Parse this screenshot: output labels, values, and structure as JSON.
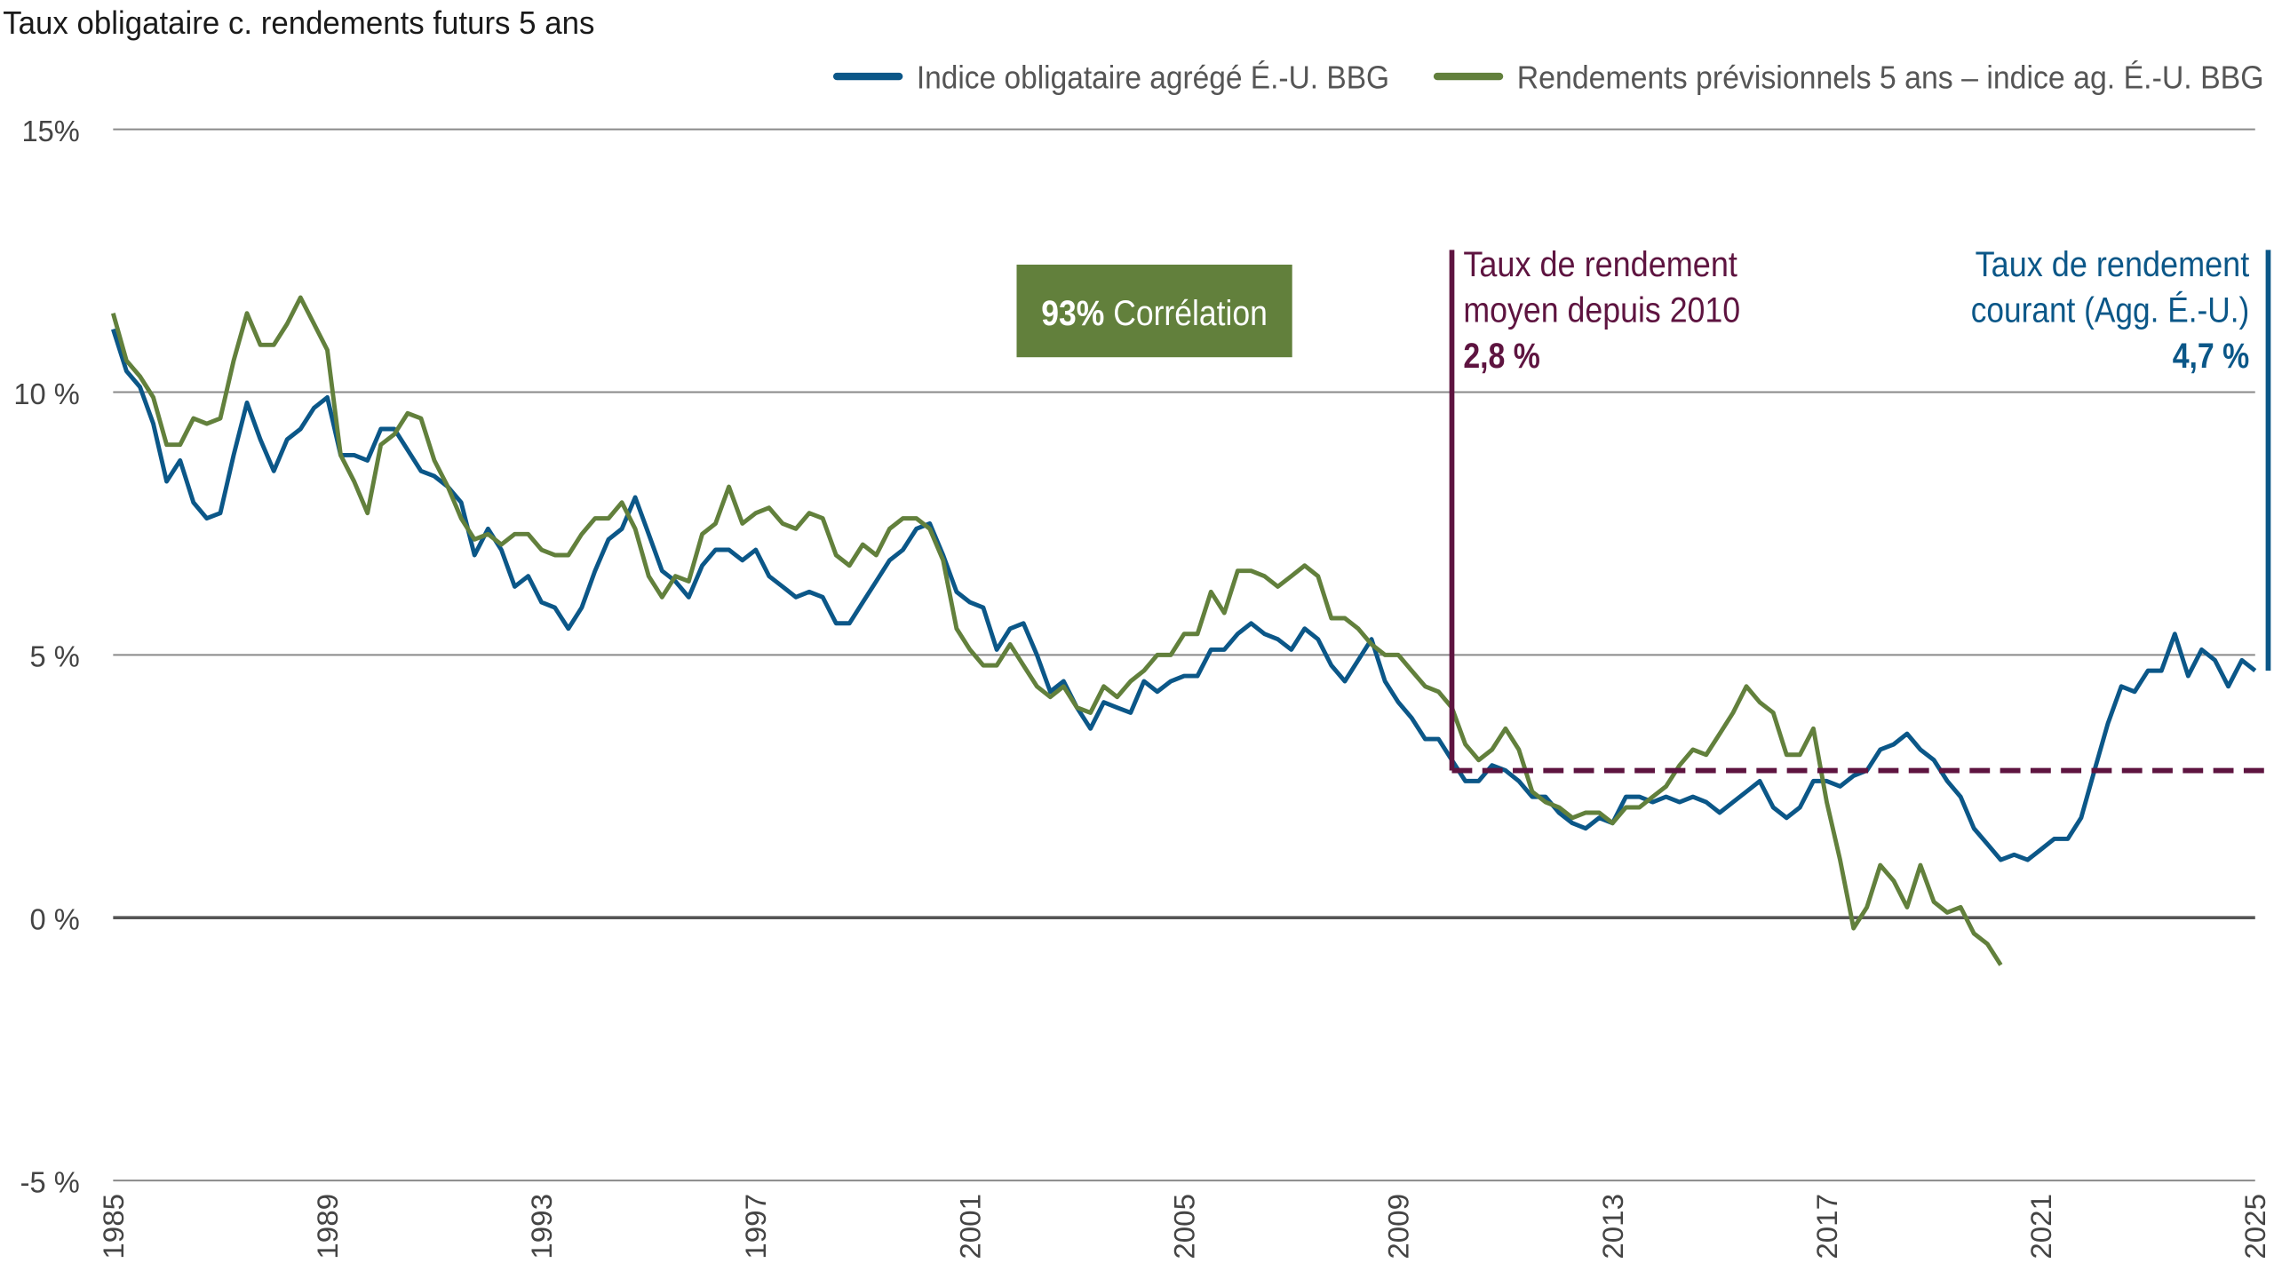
{
  "chart_data": {
    "type": "line",
    "title": "Taux obligataire c. rendements futurs 5 ans",
    "xlabel": "",
    "ylabel": "",
    "xlim": [
      1985,
      2025
    ],
    "ylim": [
      -5,
      15
    ],
    "grid": true,
    "legend_placement": "top-right",
    "y_ticks": [
      15,
      10,
      5,
      0,
      -5
    ],
    "y_tick_labels": [
      "15%",
      "10 %",
      "5 %",
      "0 %",
      "-5 %"
    ],
    "x_ticks": [
      1985,
      1989,
      1993,
      1997,
      2001,
      2005,
      2009,
      2013,
      2017,
      2021,
      2025
    ],
    "x_tick_labels": [
      "1985",
      "1989",
      "1993",
      "1997",
      "2001",
      "2005",
      "2009",
      "2013",
      "2017",
      "2021",
      "2025"
    ],
    "x": [
      1985,
      1985.25,
      1985.5,
      1985.75,
      1986,
      1986.25,
      1986.5,
      1986.75,
      1987,
      1987.25,
      1987.5,
      1987.75,
      1988,
      1988.25,
      1988.5,
      1988.75,
      1989,
      1989.25,
      1989.5,
      1989.75,
      1990,
      1990.25,
      1990.5,
      1990.75,
      1991,
      1991.25,
      1991.5,
      1991.75,
      1992,
      1992.25,
      1992.5,
      1992.75,
      1993,
      1993.25,
      1993.5,
      1993.75,
      1994,
      1994.25,
      1994.5,
      1994.75,
      1995,
      1995.25,
      1995.5,
      1995.75,
      1996,
      1996.25,
      1996.5,
      1996.75,
      1997,
      1997.25,
      1997.5,
      1997.75,
      1998,
      1998.25,
      1998.5,
      1998.75,
      1999,
      1999.25,
      1999.5,
      1999.75,
      2000,
      2000.25,
      2000.5,
      2000.75,
      2001,
      2001.25,
      2001.5,
      2001.75,
      2002,
      2002.25,
      2002.5,
      2002.75,
      2003,
      2003.25,
      2003.5,
      2003.75,
      2004,
      2004.25,
      2004.5,
      2004.75,
      2005,
      2005.25,
      2005.5,
      2005.75,
      2006,
      2006.25,
      2006.5,
      2006.75,
      2007,
      2007.25,
      2007.5,
      2007.75,
      2008,
      2008.25,
      2008.5,
      2008.75,
      2009,
      2009.25,
      2009.5,
      2009.75,
      2010,
      2010.25,
      2010.5,
      2010.75,
      2011,
      2011.25,
      2011.5,
      2011.75,
      2012,
      2012.25,
      2012.5,
      2012.75,
      2013,
      2013.25,
      2013.5,
      2013.75,
      2014,
      2014.25,
      2014.5,
      2014.75,
      2015,
      2015.25,
      2015.5,
      2015.75,
      2016,
      2016.25,
      2016.5,
      2016.75,
      2017,
      2017.25,
      2017.5,
      2017.75,
      2018,
      2018.25,
      2018.5,
      2018.75,
      2019,
      2019.25,
      2019.5,
      2019.75,
      2020,
      2020.25,
      2020.5,
      2020.75,
      2021,
      2021.25,
      2021.5,
      2021.75,
      2022,
      2022.25,
      2022.5,
      2022.75,
      2023,
      2023.25,
      2023.5,
      2023.75,
      2024,
      2024.25,
      2024.5,
      2024.75,
      2025
    ],
    "series": [
      {
        "name": "Indice obligataire agrégé É.-U. BBG",
        "color": "#0b5788",
        "values": [
          11.2,
          10.4,
          10.1,
          9.4,
          8.3,
          8.7,
          7.9,
          7.6,
          7.7,
          8.8,
          9.8,
          9.1,
          8.5,
          9.1,
          9.3,
          9.7,
          9.9,
          8.8,
          8.8,
          8.7,
          9.3,
          9.3,
          8.9,
          8.5,
          8.4,
          8.2,
          7.9,
          6.9,
          7.4,
          7.0,
          6.3,
          6.5,
          6.0,
          5.9,
          5.5,
          5.9,
          6.6,
          7.2,
          7.4,
          8.0,
          7.3,
          6.6,
          6.4,
          6.1,
          6.7,
          7.0,
          7.0,
          6.8,
          7.0,
          6.5,
          6.3,
          6.1,
          6.2,
          6.1,
          5.6,
          5.6,
          6.0,
          6.4,
          6.8,
          7.0,
          7.4,
          7.5,
          6.9,
          6.2,
          6.0,
          5.9,
          5.1,
          5.5,
          5.6,
          5.0,
          4.3,
          4.5,
          4.0,
          3.6,
          4.1,
          4.0,
          3.9,
          4.5,
          4.3,
          4.5,
          4.6,
          4.6,
          5.1,
          5.1,
          5.4,
          5.6,
          5.4,
          5.3,
          5.1,
          5.5,
          5.3,
          4.8,
          4.5,
          4.9,
          5.3,
          4.5,
          4.1,
          3.8,
          3.4,
          3.4,
          3.0,
          2.6,
          2.6,
          2.9,
          2.8,
          2.6,
          2.3,
          2.3,
          2.0,
          1.8,
          1.7,
          1.9,
          1.8,
          2.3,
          2.3,
          2.2,
          2.3,
          2.2,
          2.3,
          2.2,
          2.0,
          2.2,
          2.4,
          2.6,
          2.1,
          1.9,
          2.1,
          2.6,
          2.6,
          2.5,
          2.7,
          2.8,
          3.2,
          3.3,
          3.5,
          3.2,
          3.0,
          2.6,
          2.3,
          1.7,
          1.4,
          1.1,
          1.2,
          1.1,
          1.3,
          1.5,
          1.5,
          1.9,
          2.8,
          3.7,
          4.4,
          4.3,
          4.7,
          4.7,
          5.4,
          4.6,
          5.1,
          4.9,
          4.4,
          4.9,
          4.7
        ]
      },
      {
        "name": "Rendements prévisionnels 5 ans – indice ag. É.-U. BBG",
        "color": "#62803c",
        "values": [
          11.5,
          10.6,
          10.3,
          9.9,
          9.0,
          9.0,
          9.5,
          9.4,
          9.5,
          10.6,
          11.5,
          10.9,
          10.9,
          11.3,
          11.8,
          11.3,
          10.8,
          8.8,
          8.3,
          7.7,
          9.0,
          9.2,
          9.6,
          9.5,
          8.7,
          8.2,
          7.6,
          7.2,
          7.3,
          7.1,
          7.3,
          7.3,
          7.0,
          6.9,
          6.9,
          7.3,
          7.6,
          7.6,
          7.9,
          7.4,
          6.5,
          6.1,
          6.5,
          6.4,
          7.3,
          7.5,
          8.2,
          7.5,
          7.7,
          7.8,
          7.5,
          7.4,
          7.7,
          7.6,
          6.9,
          6.7,
          7.1,
          6.9,
          7.4,
          7.6,
          7.6,
          7.4,
          6.8,
          5.5,
          5.1,
          4.8,
          4.8,
          5.2,
          4.8,
          4.4,
          4.2,
          4.4,
          4.0,
          3.9,
          4.4,
          4.2,
          4.5,
          4.7,
          5.0,
          5.0,
          5.4,
          5.4,
          6.2,
          5.8,
          6.6,
          6.6,
          6.5,
          6.3,
          6.5,
          6.7,
          6.5,
          5.7,
          5.7,
          5.5,
          5.2,
          5.0,
          5.0,
          4.7,
          4.4,
          4.3,
          4.0,
          3.3,
          3.0,
          3.2,
          3.6,
          3.2,
          2.4,
          2.2,
          2.1,
          1.9,
          2.0,
          2.0,
          1.8,
          2.1,
          2.1,
          2.3,
          2.5,
          2.9,
          3.2,
          3.1,
          3.5,
          3.9,
          4.4,
          4.1,
          3.9,
          3.1,
          3.1,
          3.6,
          2.2,
          1.1,
          -0.2,
          0.2,
          1.0,
          0.7,
          0.2,
          1.0,
          0.3,
          0.1,
          0.2,
          -0.3,
          -0.5,
          -0.9,
          null,
          null,
          null,
          null,
          null,
          null,
          null,
          null,
          null,
          null,
          null,
          null,
          null,
          null,
          null,
          null,
          null,
          null,
          null
        ]
      }
    ],
    "annotations": {
      "correlation": {
        "value": "93%",
        "label": "Corrélation",
        "color": "#62803c"
      },
      "average": {
        "line1": "Taux de rendement",
        "line2": "moyen depuis 2010",
        "value_label": "2,8 %",
        "value": 2.8,
        "since": 2010,
        "color": "#5e1440"
      },
      "current": {
        "line1": "Taux de rendement",
        "line2": "courant (Agg. É.-U.)",
        "value_label": "4,7 %",
        "value": 4.7,
        "color": "#0b5788"
      }
    }
  }
}
